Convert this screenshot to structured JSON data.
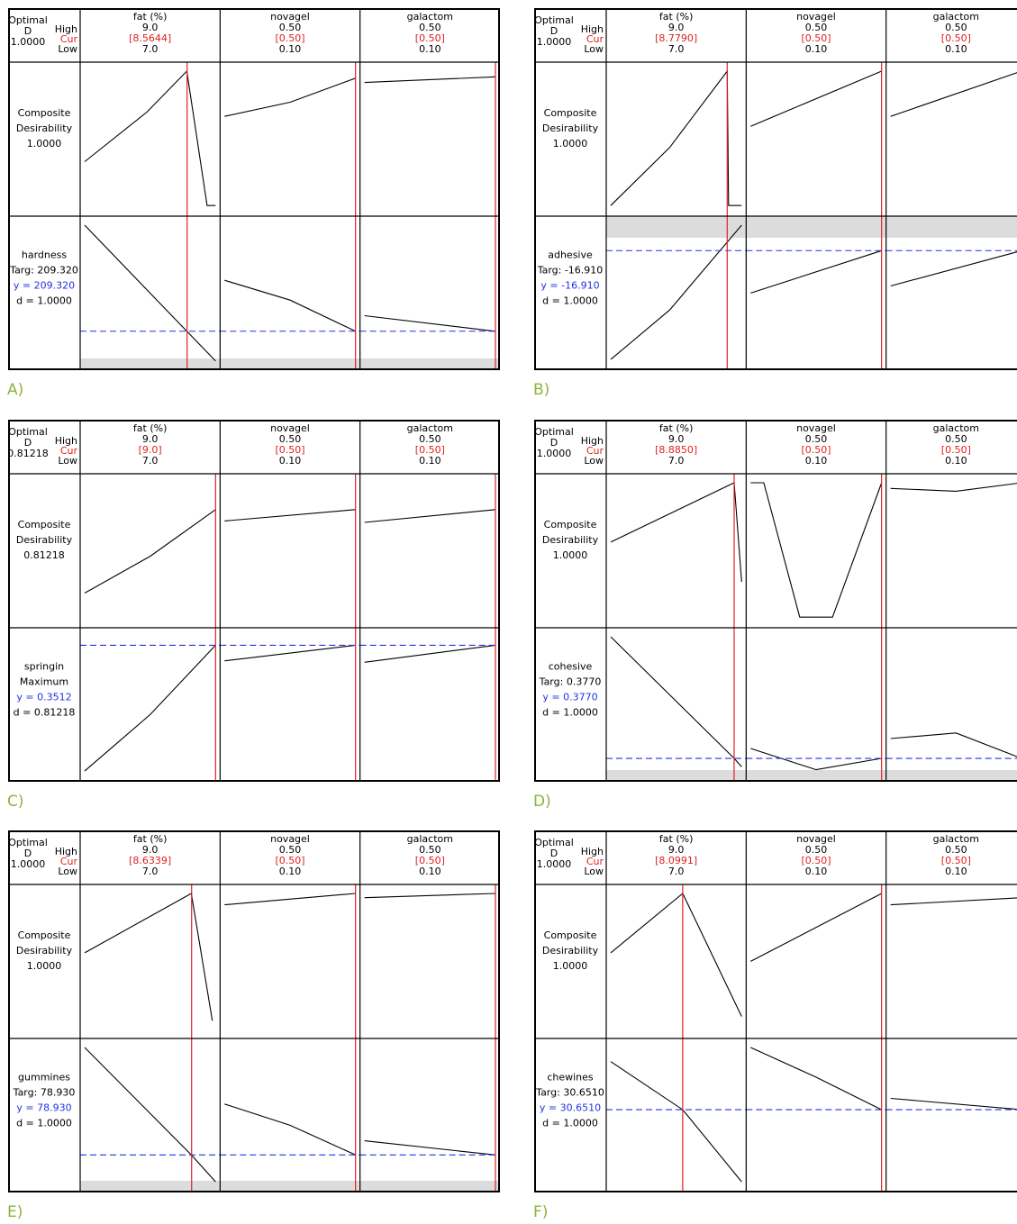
{
  "header_labels": {
    "optimal": "Optimal",
    "d": "D",
    "high": "High",
    "cur": "Cur",
    "low": "Low"
  },
  "colors": {
    "red": "#e02020",
    "blue": "#2233dd",
    "black": "#000000",
    "gray": "#dcdcdc",
    "letter": "#8cb43c"
  },
  "factors": [
    "fat (%)",
    "novagel",
    "galactom"
  ],
  "chart_data": [
    {
      "panel": "A)",
      "type": "line",
      "optimal_d": "1.0000",
      "high": [
        "9.0",
        "0.50",
        "0.50"
      ],
      "cur": [
        "[8.5644]",
        "[0.50]",
        "[0.50]"
      ],
      "low": [
        "7.0",
        "0.10",
        "0.10"
      ],
      "xlim": [
        [
          7.0,
          9.0
        ],
        [
          0.1,
          0.5
        ],
        [
          0.1,
          0.5
        ]
      ],
      "cur_values": [
        8.5644,
        0.5,
        0.5
      ],
      "rows": [
        {
          "lines": [
            "Composite",
            "Desirability",
            "1.0000"
          ],
          "colors": [
            "black",
            "black",
            "black"
          ],
          "ylim": [
            0,
            1.0
          ],
          "curves": [
            [
              [
                7.0,
                0.36
              ],
              [
                7.95,
                0.71
              ],
              [
                8.56,
                1.0
              ],
              [
                8.87,
                0.05
              ],
              [
                9.0,
                0.05
              ]
            ],
            [
              [
                0.1,
                0.68
              ],
              [
                0.3,
                0.78
              ],
              [
                0.5,
                0.95
              ]
            ],
            [
              [
                0.1,
                0.92
              ],
              [
                0.5,
                0.96
              ]
            ]
          ]
        },
        {
          "lines": [
            "hardness",
            "Targ: 209.320",
            "y = 209.320",
            "d = 1.0000"
          ],
          "colors": [
            "black",
            "black",
            "blue",
            "black"
          ],
          "ylim": [
            0,
            100
          ],
          "target": 25,
          "shade": "bottom",
          "curves": [
            [
              [
                7.0,
                100
              ],
              [
                8.56,
                25
              ],
              [
                9.0,
                4
              ]
            ],
            [
              [
                0.1,
                61
              ],
              [
                0.3,
                47
              ],
              [
                0.5,
                25
              ]
            ],
            [
              [
                0.1,
                36
              ],
              [
                0.5,
                25
              ]
            ]
          ]
        }
      ]
    },
    {
      "panel": "B)",
      "type": "line",
      "optimal_d": "1.0000",
      "high": [
        "9.0",
        "0.50",
        "0.50"
      ],
      "cur": [
        "[8.7790]",
        "[0.50]",
        "[0.50]"
      ],
      "low": [
        "7.0",
        "0.10",
        "0.10"
      ],
      "xlim": [
        [
          7.0,
          9.0
        ],
        [
          0.1,
          0.5
        ],
        [
          0.1,
          0.5
        ]
      ],
      "cur_values": [
        8.779,
        0.5,
        0.5
      ],
      "rows": [
        {
          "lines": [
            "Composite",
            "Desirability",
            "1.0000"
          ],
          "colors": [
            "black",
            "black",
            "black"
          ],
          "ylim": [
            0,
            1.0
          ],
          "curves": [
            [
              [
                7.0,
                0.05
              ],
              [
                7.9,
                0.46
              ],
              [
                8.78,
                1.0
              ],
              [
                8.8,
                0.05
              ],
              [
                9.0,
                0.05
              ]
            ],
            [
              [
                0.1,
                0.61
              ],
              [
                0.5,
                1.0
              ]
            ],
            [
              [
                0.1,
                0.68
              ],
              [
                0.5,
                1.0
              ]
            ]
          ]
        },
        {
          "lines": [
            "adhesive",
            "Targ: -16.910",
            "y = -16.910",
            "d = 1.0000"
          ],
          "colors": [
            "black",
            "black",
            "blue",
            "black"
          ],
          "ylim": [
            0,
            100
          ],
          "target": 82,
          "shade": "top",
          "curves": [
            [
              [
                7.0,
                5
              ],
              [
                7.9,
                40
              ],
              [
                9.0,
                100
              ]
            ],
            [
              [
                0.1,
                52
              ],
              [
                0.5,
                82
              ]
            ],
            [
              [
                0.1,
                57
              ],
              [
                0.5,
                82
              ]
            ]
          ]
        }
      ]
    },
    {
      "panel": "C)",
      "type": "line",
      "optimal_d": "0.81218",
      "high": [
        "9.0",
        "0.50",
        "0.50"
      ],
      "cur": [
        "[9.0]",
        "[0.50]",
        "[0.50]"
      ],
      "low": [
        "7.0",
        "0.10",
        "0.10"
      ],
      "xlim": [
        [
          7.0,
          9.0
        ],
        [
          0.1,
          0.5
        ],
        [
          0.1,
          0.5
        ]
      ],
      "cur_values": [
        9.0,
        0.5,
        0.5
      ],
      "rows": [
        {
          "lines": [
            "Composite",
            "Desirability",
            "0.81218"
          ],
          "colors": [
            "black",
            "black",
            "black"
          ],
          "ylim": [
            0,
            1.0
          ],
          "curves": [
            [
              [
                7.0,
                0.22
              ],
              [
                8.0,
                0.48
              ],
              [
                9.0,
                0.81
              ]
            ],
            [
              [
                0.1,
                0.73
              ],
              [
                0.5,
                0.81
              ]
            ],
            [
              [
                0.1,
                0.72
              ],
              [
                0.5,
                0.81
              ]
            ]
          ]
        },
        {
          "lines": [
            "springin",
            "Maximum",
            "y = 0.3512",
            "d = 0.81218"
          ],
          "colors": [
            "black",
            "black",
            "blue",
            "black"
          ],
          "ylim": [
            0,
            100
          ],
          "target": 94,
          "shade": "none",
          "curves": [
            [
              [
                7.0,
                5
              ],
              [
                8.0,
                45
              ],
              [
                9.0,
                94
              ]
            ],
            [
              [
                0.1,
                83
              ],
              [
                0.5,
                94
              ]
            ],
            [
              [
                0.1,
                82
              ],
              [
                0.5,
                94
              ]
            ]
          ]
        }
      ]
    },
    {
      "panel": "D)",
      "type": "line",
      "optimal_d": "1.0000",
      "high": [
        "9.0",
        "0.50",
        "0.50"
      ],
      "cur": [
        "[8.8850]",
        "[0.50]",
        "[0.50]"
      ],
      "low": [
        "7.0",
        "0.10",
        "0.10"
      ],
      "xlim": [
        [
          7.0,
          9.0
        ],
        [
          0.1,
          0.5
        ],
        [
          0.1,
          0.5
        ]
      ],
      "cur_values": [
        8.885,
        0.5,
        0.5
      ],
      "rows": [
        {
          "lines": [
            "Composite",
            "Desirability",
            "1.0000"
          ],
          "colors": [
            "black",
            "black",
            "black"
          ],
          "ylim": [
            0,
            1.0
          ],
          "curves": [
            [
              [
                7.0,
                0.58
              ],
              [
                8.885,
                1.0
              ],
              [
                9.0,
                0.3
              ]
            ],
            [
              [
                0.1,
                1.0
              ],
              [
                0.14,
                1.0
              ],
              [
                0.25,
                0.05
              ],
              [
                0.35,
                0.05
              ],
              [
                0.5,
                1.0
              ]
            ],
            [
              [
                0.1,
                0.96
              ],
              [
                0.3,
                0.94
              ],
              [
                0.5,
                1.0
              ]
            ]
          ]
        },
        {
          "lines": [
            "cohesive",
            "Targ: 0.3770",
            "y = 0.3770",
            "d = 1.0000"
          ],
          "colors": [
            "black",
            "black",
            "blue",
            "black"
          ],
          "ylim": [
            0,
            100
          ],
          "target": 14,
          "shade": "bottom",
          "curves": [
            [
              [
                7.0,
                100
              ],
              [
                8.885,
                14
              ],
              [
                9.0,
                8
              ]
            ],
            [
              [
                0.1,
                21
              ],
              [
                0.3,
                6
              ],
              [
                0.5,
                14
              ]
            ],
            [
              [
                0.1,
                28
              ],
              [
                0.3,
                32
              ],
              [
                0.5,
                14
              ]
            ]
          ]
        }
      ]
    },
    {
      "panel": "E)",
      "type": "line",
      "optimal_d": "1.0000",
      "high": [
        "9.0",
        "0.50",
        "0.50"
      ],
      "cur": [
        "[8.6339]",
        "[0.50]",
        "[0.50]"
      ],
      "low": [
        "7.0",
        "0.10",
        "0.10"
      ],
      "xlim": [
        [
          7.0,
          9.0
        ],
        [
          0.1,
          0.5
        ],
        [
          0.1,
          0.5
        ]
      ],
      "cur_values": [
        8.6339,
        0.5,
        0.5
      ],
      "rows": [
        {
          "lines": [
            "Composite",
            "Desirability",
            "1.0000"
          ],
          "colors": [
            "black",
            "black",
            "black"
          ],
          "ylim": [
            0,
            1.0
          ],
          "curves": [
            [
              [
                7.0,
                0.58
              ],
              [
                8.63,
                1.0
              ],
              [
                8.95,
                0.1
              ]
            ],
            [
              [
                0.1,
                0.92
              ],
              [
                0.5,
                1.0
              ]
            ],
            [
              [
                0.1,
                0.97
              ],
              [
                0.5,
                1.0
              ]
            ]
          ]
        },
        {
          "lines": [
            "gummines",
            "Targ: 78.930",
            "y = 78.930",
            "d = 1.0000"
          ],
          "colors": [
            "black",
            "black",
            "blue",
            "black"
          ],
          "ylim": [
            0,
            100
          ],
          "target": 24,
          "shade": "bottom",
          "curves": [
            [
              [
                7.0,
                100
              ],
              [
                8.63,
                24
              ],
              [
                9.0,
                5
              ]
            ],
            [
              [
                0.1,
                60
              ],
              [
                0.3,
                45
              ],
              [
                0.5,
                24
              ]
            ],
            [
              [
                0.1,
                34
              ],
              [
                0.5,
                24
              ]
            ]
          ]
        }
      ]
    },
    {
      "panel": "F)",
      "type": "line",
      "optimal_d": "1.0000",
      "high": [
        "9.0",
        "0.50",
        "0.50"
      ],
      "cur": [
        "[8.0991]",
        "[0.50]",
        "[0.50]"
      ],
      "low": [
        "7.0",
        "0.10",
        "0.10"
      ],
      "xlim": [
        [
          7.0,
          9.0
        ],
        [
          0.1,
          0.5
        ],
        [
          0.1,
          0.5
        ]
      ],
      "cur_values": [
        8.0991,
        0.5,
        0.5
      ],
      "rows": [
        {
          "lines": [
            "Composite",
            "Desirability",
            "1.0000"
          ],
          "colors": [
            "black",
            "black",
            "black"
          ],
          "ylim": [
            0,
            1.0
          ],
          "curves": [
            [
              [
                7.0,
                0.58
              ],
              [
                8.1,
                1.0
              ],
              [
                9.0,
                0.13
              ]
            ],
            [
              [
                0.1,
                0.52
              ],
              [
                0.5,
                1.0
              ]
            ],
            [
              [
                0.1,
                0.92
              ],
              [
                0.5,
                0.97
              ]
            ]
          ]
        },
        {
          "lines": [
            "chewines",
            "Targ: 30.6510",
            "y = 30.6510",
            "d = 1.0000"
          ],
          "colors": [
            "black",
            "black",
            "blue",
            "black"
          ],
          "ylim": [
            0,
            100
          ],
          "target": 56,
          "shade": "none",
          "curves": [
            [
              [
                7.0,
                90
              ],
              [
                8.1,
                56
              ],
              [
                9.0,
                5
              ]
            ],
            [
              [
                0.1,
                100
              ],
              [
                0.3,
                79
              ],
              [
                0.5,
                56
              ]
            ],
            [
              [
                0.1,
                64
              ],
              [
                0.5,
                56
              ]
            ]
          ]
        }
      ]
    }
  ]
}
